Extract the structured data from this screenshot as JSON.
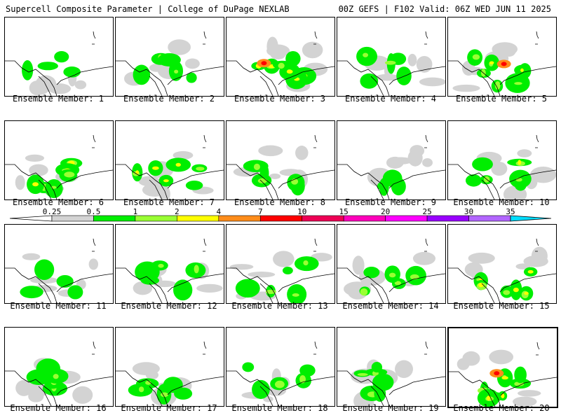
{
  "header": {
    "left": "Supercell Composite Parameter | College of DuPage NEXLAB",
    "right": "00Z GEFS | F102 Valid: 06Z WED JUN 11 2025"
  },
  "colorbar": {
    "ticks": [
      "0.25",
      "0.5",
      "1",
      "2",
      "4",
      "7",
      "10",
      "15",
      "20",
      "25",
      "30",
      "35"
    ],
    "colors": [
      "#d3d3d3",
      "#00ee00",
      "#99ff33",
      "#ffff00",
      "#ff8c1a",
      "#ff0000",
      "#ee0055",
      "#ff00bb",
      "#ff00ff",
      "#9900ff",
      "#b266ff",
      "#00ddff"
    ]
  },
  "panels": [
    {
      "label": "Ensemble Member: 1",
      "intensity": 1
    },
    {
      "label": "Ensemble Member: 2",
      "intensity": 2
    },
    {
      "label": "Ensemble Member: 3",
      "intensity": 4
    },
    {
      "label": "Ensemble Member: 4",
      "intensity": 2
    },
    {
      "label": "Ensemble Member: 5",
      "intensity": 4
    },
    {
      "label": "Ensemble Member: 6",
      "intensity": 3
    },
    {
      "label": "Ensemble Member: 7",
      "intensity": 3
    },
    {
      "label": "Ensemble Member: 8",
      "intensity": 2
    },
    {
      "label": "Ensemble Member: 9",
      "intensity": 1
    },
    {
      "label": "Ensemble Member: 10",
      "intensity": 3
    },
    {
      "label": "Ensemble Member: 11",
      "intensity": 1
    },
    {
      "label": "Ensemble Member: 12",
      "intensity": 2
    },
    {
      "label": "Ensemble Member: 13",
      "intensity": 2
    },
    {
      "label": "Ensemble Member: 14",
      "intensity": 2
    },
    {
      "label": "Ensemble Member: 15",
      "intensity": 3
    },
    {
      "label": "Ensemble Member: 16",
      "intensity": 2
    },
    {
      "label": "Ensemble Member: 17",
      "intensity": 2
    },
    {
      "label": "Ensemble Member: 18",
      "intensity": 2
    },
    {
      "label": "Ensemble Member: 19",
      "intensity": 3
    },
    {
      "label": "Ensemble Member: 20",
      "intensity": 4
    }
  ]
}
